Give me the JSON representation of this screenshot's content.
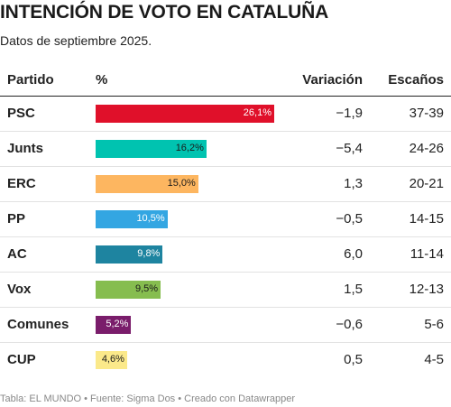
{
  "title": "INTENCIÓN DE VOTO EN CATALUÑA",
  "subtitle": "Datos de septiembre 2025.",
  "footer": "Tabla: EL MUNDO • Fuente: Sigma Dos • Creado con Datawrapper",
  "chart_data": {
    "type": "table",
    "columns": [
      "Partido",
      "%",
      "Variación",
      "Escaños"
    ],
    "bar_max": 26.1,
    "rows": [
      {
        "party": "PSC",
        "pct": 26.1,
        "pct_label": "26,1%",
        "variation": "−1,9",
        "seats": "37-39",
        "color": "#e0102a",
        "label_color": "#ffffff"
      },
      {
        "party": "Junts",
        "pct": 16.2,
        "pct_label": "16,2%",
        "variation": "−5,4",
        "seats": "24-26",
        "color": "#00c3b0",
        "label_color": "#1a1a1a"
      },
      {
        "party": "ERC",
        "pct": 15.0,
        "pct_label": "15,0%",
        "variation": "1,3",
        "seats": "20-21",
        "color": "#fdb660",
        "label_color": "#1a1a1a"
      },
      {
        "party": "PP",
        "pct": 10.5,
        "pct_label": "10,5%",
        "variation": "−0,5",
        "seats": "14-15",
        "color": "#33a6e2",
        "label_color": "#ffffff"
      },
      {
        "party": "AC",
        "pct": 9.8,
        "pct_label": "9,8%",
        "variation": "6,0",
        "seats": "11-14",
        "color": "#1e84a0",
        "label_color": "#ffffff"
      },
      {
        "party": "Vox",
        "pct": 9.5,
        "pct_label": "9,5%",
        "variation": "1,5",
        "seats": "12-13",
        "color": "#86bd4f",
        "label_color": "#1a1a1a"
      },
      {
        "party": "Comunes",
        "pct": 5.2,
        "pct_label": "5,2%",
        "variation": "−0,6",
        "seats": "5-6",
        "color": "#7a1d6b",
        "label_color": "#ffffff"
      },
      {
        "party": "CUP",
        "pct": 4.6,
        "pct_label": "4,6%",
        "variation": "0,5",
        "seats": "4-5",
        "color": "#fbe98a",
        "label_color": "#1a1a1a"
      }
    ]
  }
}
